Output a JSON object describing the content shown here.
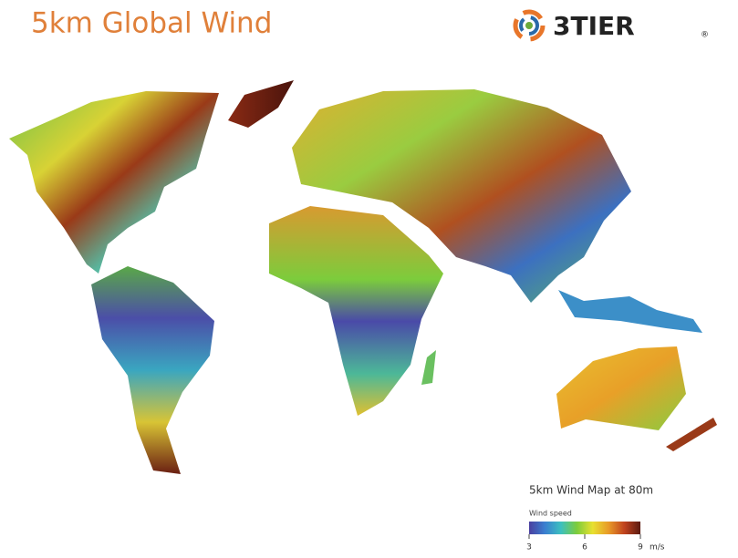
{
  "header": {
    "title": "5km Global Wind",
    "logo": "3TIER",
    "logo_mark": "®"
  },
  "legend": {
    "title": "5km Wind Map at 80m",
    "label": "Wind speed",
    "range": [
      3,
      9
    ],
    "ticks": [
      3,
      6,
      9
    ],
    "unit": "m/s",
    "colors": [
      "#4a3fa0",
      "#3a7fd0",
      "#3cc0c0",
      "#7ccc3c",
      "#e8e030",
      "#e89a28",
      "#c0421e",
      "#5a1a10"
    ]
  }
}
